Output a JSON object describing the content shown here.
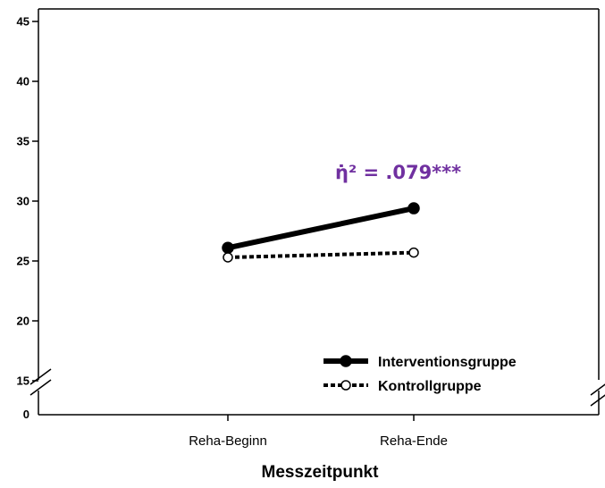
{
  "chart_data": {
    "type": "line",
    "xlabel": "Messzeitpunkt",
    "ylabel": "",
    "categories": [
      "Reha-Beginn",
      "Reha-Ende"
    ],
    "ylim": [
      15,
      45
    ],
    "yticks": [
      15,
      20,
      25,
      30,
      35,
      40,
      45
    ],
    "y_axis_break": true,
    "y_axis_origin_label": "0",
    "series": [
      {
        "name": "Interventionsgruppe",
        "values": [
          26.1,
          29.4
        ],
        "line_style": "solid",
        "marker": "filled-circle"
      },
      {
        "name": "Kontrollgruppe",
        "values": [
          25.3,
          25.7
        ],
        "line_style": "dotted",
        "marker": "open-circle"
      }
    ],
    "annotation": {
      "text": "η̇² = .079***",
      "color": "#7030a0"
    },
    "legend_placement": "bottom-right",
    "grid": false
  }
}
